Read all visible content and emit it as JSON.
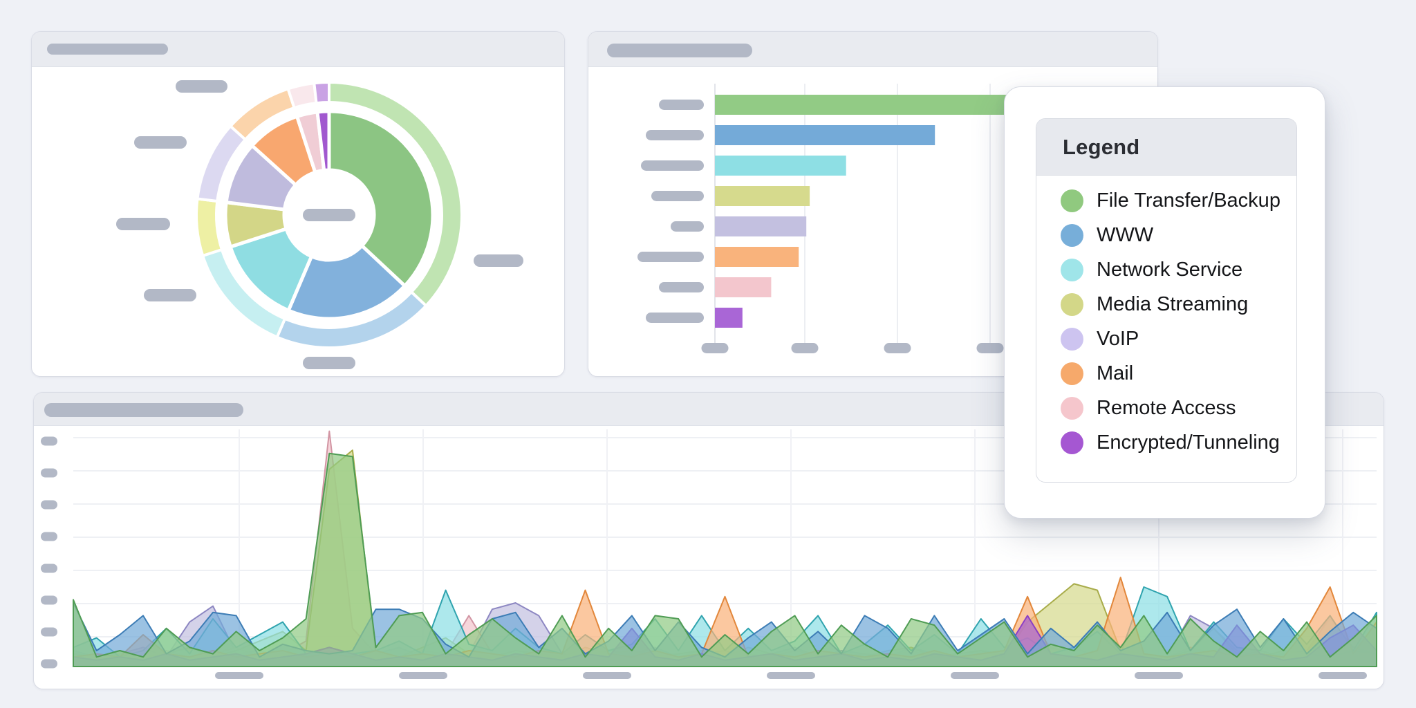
{
  "legend": {
    "title": "Legend",
    "items": [
      {
        "label": "File Transfer/Backup",
        "color": "#90c97f"
      },
      {
        "label": "WWW",
        "color": "#77aed9"
      },
      {
        "label": "Network Service",
        "color": "#9fe5e9"
      },
      {
        "label": "Media Streaming",
        "color": "#d3d788"
      },
      {
        "label": "VoIP",
        "color": "#cdc4f0"
      },
      {
        "label": "Mail",
        "color": "#f6a96b"
      },
      {
        "label": "Remote Access",
        "color": "#f5c6cc"
      },
      {
        "label": "Encrypted/Tunneling",
        "color": "#a557d2"
      }
    ]
  },
  "redaction_note": "All panel titles, axis tick labels and callout labels are redacted gray placeholder pills; the only readable text on screen is the Legend card.",
  "chart_data": [
    {
      "type": "pie",
      "subtype": "two-ring donut with skeleton callout labels",
      "categories": [
        "File Transfer/Backup",
        "WWW",
        "Network Service",
        "Media Streaming",
        "VoIP",
        "Mail",
        "Remote Access",
        "Encrypted/Tunneling"
      ],
      "values": [
        36.9,
        19.4,
        13.6,
        6.9,
        9.7,
        8.3,
        3.2,
        1.8
      ],
      "colors_inner": [
        "#8cc583",
        "#82b1dc",
        "#8fdde2",
        "#d3d687",
        "#bfbbdd",
        "#f8a76f",
        "#f0cdd5",
        "#a158cf"
      ],
      "colors_outer": [
        "#c0e4b2",
        "#b3d3ec",
        "#c6eff1",
        "#eef0a4",
        "#dcd9f1",
        "#fbd4ab",
        "#f9e8ec",
        "#c9a2e4"
      ],
      "title": null,
      "legend_position": "floating card, right side",
      "callout_placeholders": 6,
      "center_placeholder": true
    },
    {
      "type": "bar",
      "orientation": "horizontal",
      "categories": [
        "File Transfer/Backup",
        "WWW",
        "Network Service",
        "Media Streaming",
        "VoIP",
        "Mail",
        "Remote Access",
        "Encrypted/Tunneling"
      ],
      "values": [
        100,
        52,
        31,
        22.4,
        21.6,
        19.8,
        13.3,
        6.5
      ],
      "colors": [
        "#92cb85",
        "#74aad8",
        "#8edfe4",
        "#d6da8d",
        "#c3c0e0",
        "#f9b37c",
        "#f3c6cd",
        "#a966d6"
      ],
      "title": null,
      "xlabel": null,
      "ylabel": null,
      "grid": "vertical gridlines at 4 placeholder ticks",
      "note": "longest (green) bar runs under the floating legend card; y labels and x ticks are gray placeholder pills",
      "label_pill_widths": [
        65,
        84,
        91,
        76,
        48,
        96,
        65,
        84
      ],
      "x_tick_placeholders": 4
    },
    {
      "type": "area",
      "subtype": "overlapping (non-stacked) area series",
      "title": null,
      "grid": "horizontal gridlines (8 placeholder y ticks), faint vertical gridlines at 7 placeholder x ticks",
      "y_tick_placeholders": 8,
      "x_tick_placeholders": 7,
      "unit": "one gridline step",
      "series": [
        {
          "name": "VoIP",
          "color": "#c3c0e0",
          "stroke": "#8d87c2",
          "values": [
            0.5,
            0.3,
            0.4,
            0.6,
            0.3,
            1.4,
            1.9,
            0.4,
            0.5,
            0.3,
            0.4,
            0.5,
            0.3,
            0.4,
            0.6,
            0.3,
            0.5,
            0.4,
            1.8,
            2.0,
            1.6,
            0.4,
            0.3,
            0.5,
            0.4,
            0.6,
            0.3,
            0.4,
            0.5,
            0.3,
            0.4,
            0.6,
            0.3,
            0.5,
            0.4,
            0.3,
            0.6,
            0.4,
            0.3,
            0.5,
            0.4,
            1.3,
            0.4,
            0.6,
            0.3,
            0.5,
            0.4,
            0.3,
            1.6,
            1.2,
            0.5,
            0.3,
            0.4,
            0.5,
            1.5,
            0.6,
            0.4
          ]
        },
        {
          "name": "Remote Access",
          "color": "#f3c6cd",
          "stroke": "#d295a3",
          "values": [
            0.4,
            0.3,
            0.4,
            0.3,
            0.5,
            0.3,
            0.4,
            0.6,
            0.3,
            0.4,
            0.8,
            7.4,
            1.2,
            0.4,
            0.3,
            0.5,
            0.4,
            1.6,
            0.4,
            0.3,
            0.5,
            0.3,
            0.4,
            0.3,
            0.5,
            0.4,
            0.3,
            0.5,
            0.3,
            0.4,
            0.3,
            0.5,
            0.4,
            0.3,
            0.4,
            0.3,
            0.5,
            0.3,
            0.4,
            0.5,
            0.3,
            1.5,
            0.6,
            0.4,
            0.3,
            0.5,
            0.4,
            0.3,
            0.6,
            0.4,
            0.3,
            0.5,
            0.3,
            0.4,
            1.6,
            0.3,
            0.5
          ]
        },
        {
          "name": "Media Streaming",
          "color": "#d6da8d",
          "stroke": "#a8ac4a",
          "values": [
            0.4,
            0.3,
            0.5,
            0.3,
            0.4,
            0.6,
            0.3,
            0.5,
            0.8,
            1.1,
            0.5,
            6.2,
            6.8,
            0.4,
            0.3,
            0.6,
            0.9,
            0.4,
            0.3,
            0.5,
            0.4,
            0.3,
            0.6,
            0.4,
            0.5,
            0.3,
            0.4,
            0.5,
            0.3,
            0.6,
            0.4,
            0.3,
            0.5,
            0.4,
            0.3,
            0.5,
            0.6,
            0.3,
            0.4,
            0.5,
            0.3,
            1.4,
            2.0,
            2.6,
            2.4,
            0.5,
            0.4,
            0.3,
            0.5,
            1.2,
            0.4,
            0.3,
            0.5,
            0.4,
            0.3,
            0.5,
            0.4
          ]
        },
        {
          "name": "Network Service",
          "color": "#8edfe4",
          "stroke": "#2fa3ae",
          "values": [
            0.6,
            0.9,
            0.3,
            0.5,
            1.2,
            0.4,
            1.5,
            0.6,
            1.0,
            1.4,
            0.4,
            0.6,
            0.4,
            0.5,
            0.8,
            0.4,
            2.4,
            0.7,
            0.5,
            1.2,
            0.6,
            0.4,
            1.0,
            0.5,
            0.7,
            1.5,
            0.5,
            1.6,
            0.5,
            1.2,
            0.5,
            0.8,
            1.6,
            0.4,
            0.7,
            1.3,
            0.5,
            1.0,
            0.4,
            1.5,
            0.6,
            0.9,
            0.4,
            0.6,
            1.1,
            0.4,
            2.5,
            2.2,
            0.5,
            1.4,
            0.6,
            0.5,
            1.5,
            0.7,
            1.6,
            0.5,
            1.7
          ]
        },
        {
          "name": "Mail",
          "color": "#f9b37c",
          "stroke": "#e2873b",
          "values": [
            0.3,
            0.4,
            0.3,
            1.0,
            0.4,
            0.3,
            0.5,
            0.3,
            0.4,
            0.5,
            0.3,
            0.4,
            0.3,
            0.5,
            0.3,
            0.4,
            0.3,
            0.5,
            0.4,
            0.3,
            0.5,
            0.4,
            2.4,
            0.4,
            0.3,
            0.5,
            0.3,
            0.4,
            2.2,
            0.3,
            0.4,
            0.3,
            0.5,
            0.4,
            0.3,
            0.4,
            0.3,
            0.5,
            0.3,
            0.4,
            0.5,
            2.2,
            0.4,
            0.3,
            0.5,
            2.8,
            0.4,
            0.3,
            0.4,
            0.5,
            0.3,
            0.4,
            0.3,
            1.2,
            2.5,
            0.4,
            1.4
          ]
        },
        {
          "name": "Encrypted/Tunneling",
          "color": "#a966d6",
          "stroke": "#8b3fc4",
          "values": [
            0.3,
            0.2,
            0.3,
            0.2,
            0.4,
            0.2,
            0.3,
            0.4,
            0.2,
            0.3,
            0.4,
            0.6,
            0.4,
            0.2,
            0.3,
            0.2,
            0.4,
            0.3,
            0.2,
            0.4,
            0.3,
            0.2,
            0.4,
            0.3,
            1.2,
            0.3,
            0.2,
            0.4,
            0.2,
            0.3,
            0.4,
            0.2,
            0.3,
            0.4,
            0.2,
            0.3,
            0.2,
            0.4,
            0.3,
            0.2,
            0.4,
            1.6,
            0.4,
            0.3,
            0.2,
            0.4,
            0.3,
            0.2,
            0.4,
            0.3,
            1.3,
            0.4,
            0.2,
            0.3,
            0.9,
            1.3,
            0.5
          ]
        },
        {
          "name": "WWW",
          "color": "#74aad8",
          "stroke": "#3c7cb5",
          "values": [
            2.0,
            0.5,
            1.0,
            1.6,
            0.4,
            0.8,
            1.7,
            1.6,
            0.3,
            0.7,
            0.5,
            0.4,
            0.5,
            1.8,
            1.8,
            1.5,
            0.7,
            0.3,
            1.5,
            1.7,
            0.6,
            1.2,
            0.4,
            0.8,
            1.6,
            0.5,
            1.4,
            0.6,
            0.3,
            0.9,
            1.4,
            0.5,
            1.1,
            0.4,
            1.6,
            1.2,
            0.4,
            1.6,
            0.5,
            1.0,
            1.5,
            0.4,
            1.2,
            0.6,
            1.4,
            0.5,
            0.8,
            1.7,
            0.5,
            1.3,
            1.8,
            0.6,
            1.5,
            0.4,
            1.1,
            1.7,
            1.2
          ]
        },
        {
          "name": "File Transfer/Backup",
          "color": "#92cb85",
          "stroke": "#4f9c54",
          "values": [
            2.1,
            0.3,
            0.5,
            0.3,
            1.2,
            0.6,
            0.4,
            1.1,
            0.5,
            0.9,
            1.5,
            6.7,
            6.6,
            0.6,
            1.6,
            1.7,
            0.4,
            1.0,
            1.5,
            0.9,
            0.4,
            1.6,
            0.3,
            1.2,
            0.5,
            1.6,
            1.5,
            0.3,
            1.0,
            0.4,
            1.1,
            1.6,
            0.4,
            1.3,
            0.7,
            0.3,
            1.5,
            1.3,
            0.4,
            0.9,
            1.4,
            0.3,
            0.7,
            0.5,
            1.3,
            0.6,
            1.6,
            0.4,
            1.5,
            0.8,
            0.3,
            1.1,
            0.5,
            1.4,
            0.3,
            0.9,
            1.6
          ]
        }
      ]
    }
  ],
  "placeholder_color": "#b2b8c6"
}
